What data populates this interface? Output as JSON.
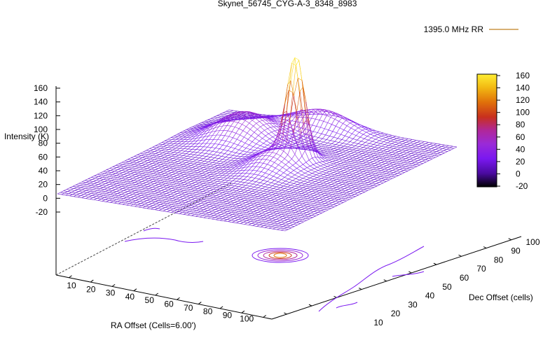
{
  "chart_data": {
    "type": "surface3d",
    "title": "Skynet_56745_CYG-A-3_8348_8983",
    "legend": {
      "label": "1395.0 MHz RR",
      "color": "#7a2fd0",
      "placement": "top-right"
    },
    "zlabel": "Intensity (K)",
    "xlabel": "RA Offset (Cells=6.00')",
    "ylabel": "Dec Offset (cells)",
    "x_ticks": [
      "10",
      "20",
      "30",
      "40",
      "50",
      "60",
      "70",
      "80",
      "90",
      "100"
    ],
    "y_ticks": [
      "10",
      "20",
      "30",
      "40",
      "50",
      "60",
      "70",
      "80",
      "90",
      "100"
    ],
    "z_ticks": [
      "160",
      "140",
      "120",
      "100",
      "80",
      "60",
      "40",
      "20",
      "0",
      "-20"
    ],
    "colorbar_ticks": [
      "160",
      "140",
      "120",
      "100",
      "80",
      "60",
      "40",
      "20",
      "0",
      "-20"
    ],
    "zlim": [
      -20,
      160
    ],
    "colorbar_range": [
      -20,
      160
    ],
    "colormap": [
      "#000000",
      "#4a0aa0",
      "#7a18f0",
      "#9a2ad8",
      "#b0279a",
      "#c8301d",
      "#e0700a",
      "#f2b812",
      "#ffee33"
    ],
    "features": [
      {
        "kind": "peak",
        "x": 58,
        "y": 62,
        "z": 155,
        "label_shown": false
      },
      {
        "kind": "ridge",
        "x": 25,
        "y": 75,
        "z": 55,
        "label_shown": false
      }
    ],
    "base_level": 15,
    "contours_on_base": true,
    "grid": false
  }
}
